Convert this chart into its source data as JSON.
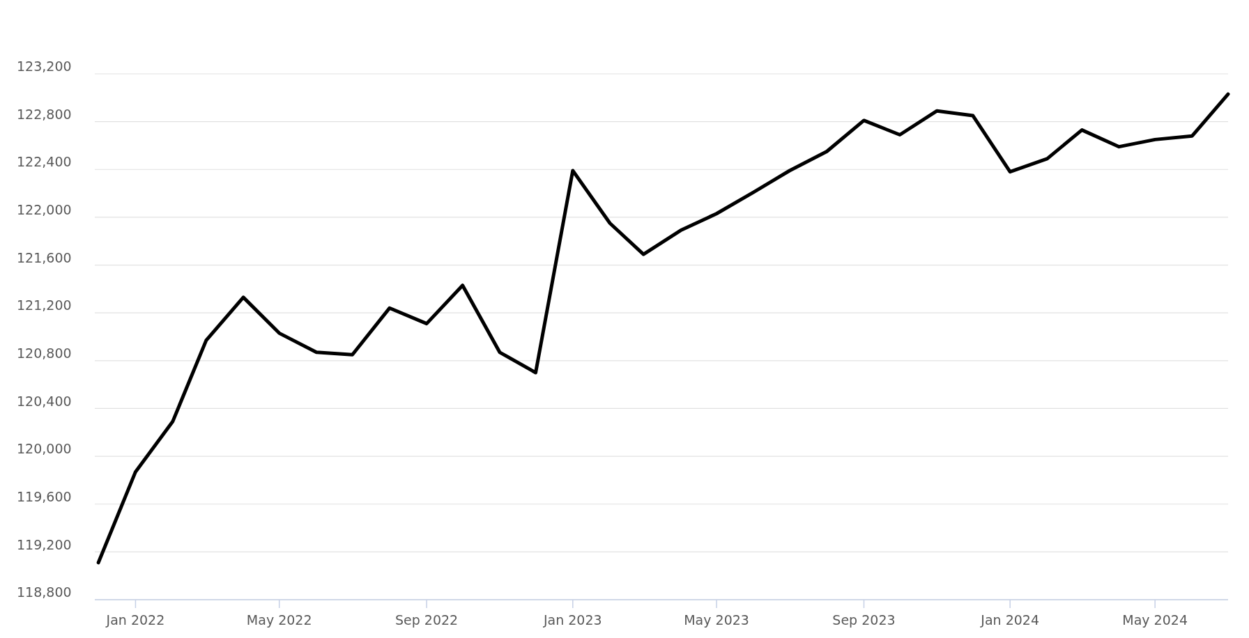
{
  "chart_data": {
    "type": "line",
    "x": [
      "2021-12-01",
      "2022-01-01",
      "2022-02-01",
      "2022-03-01",
      "2022-04-01",
      "2022-05-01",
      "2022-06-01",
      "2022-07-01",
      "2022-08-01",
      "2022-09-01",
      "2022-10-01",
      "2022-11-01",
      "2022-12-01",
      "2023-01-01",
      "2023-02-01",
      "2023-03-01",
      "2023-04-01",
      "2023-05-01",
      "2023-06-01",
      "2023-07-01",
      "2023-08-01",
      "2023-09-01",
      "2023-10-01",
      "2023-11-01",
      "2023-12-01",
      "2024-01-01",
      "2024-02-01",
      "2024-03-01",
      "2024-04-01",
      "2024-05-01",
      "2024-06-01",
      "2024-07-01"
    ],
    "series": [
      {
        "color": "#000000",
        "values": [
          119110,
          119870,
          120290,
          120970,
          121330,
          121030,
          120870,
          120850,
          121240,
          121110,
          121430,
          120870,
          120700,
          122390,
          121950,
          121690,
          121890,
          122030,
          122210,
          122390,
          122550,
          122810,
          122690,
          122890,
          122850,
          122380,
          122490,
          122730,
          122590,
          122650,
          122680,
          123030
        ]
      }
    ],
    "xlim": [
      "2021-11-28",
      "2024-07-01"
    ],
    "ylim": [
      118800,
      123200
    ],
    "yticks": [
      {
        "value": 118800,
        "label": "118,800"
      },
      {
        "value": 119200,
        "label": "119,200"
      },
      {
        "value": 119600,
        "label": "119,600"
      },
      {
        "value": 120000,
        "label": "120,000"
      },
      {
        "value": 120400,
        "label": "120,400"
      },
      {
        "value": 120800,
        "label": "120,800"
      },
      {
        "value": 121200,
        "label": "121,200"
      },
      {
        "value": 121600,
        "label": "121,600"
      },
      {
        "value": 122000,
        "label": "122,000"
      },
      {
        "value": 122400,
        "label": "122,400"
      },
      {
        "value": 122800,
        "label": "122,800"
      },
      {
        "value": 123200,
        "label": "123,200"
      }
    ],
    "xticks": [
      {
        "value": "2022-01-01",
        "label": "Jan 2022"
      },
      {
        "value": "2022-05-01",
        "label": "May 2022"
      },
      {
        "value": "2022-09-01",
        "label": "Sep 2022"
      },
      {
        "value": "2023-01-01",
        "label": "Jan 2023"
      },
      {
        "value": "2023-05-01",
        "label": "May 2023"
      },
      {
        "value": "2023-09-01",
        "label": "Sep 2023"
      },
      {
        "value": "2024-01-01",
        "label": "Jan 2024"
      },
      {
        "value": "2024-05-01",
        "label": "May 2024"
      }
    ],
    "grid": "y",
    "marker": "none",
    "line_style": "solid"
  }
}
